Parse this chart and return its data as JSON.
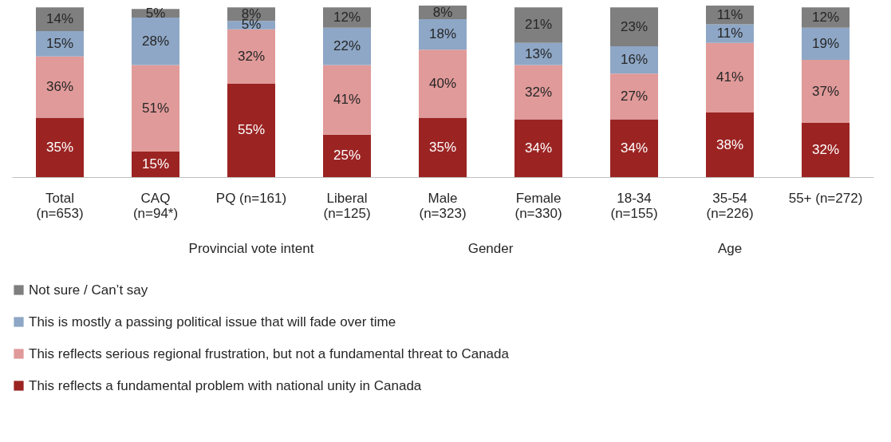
{
  "chart_data": {
    "type": "bar",
    "stacked": true,
    "data_labels": false,
    "legend": "bottom",
    "grid": false,
    "categories": [
      "Total\n(n=653)",
      "CAQ\n(n=94*)",
      "PQ (n=161)",
      "Liberal\n(n=125)",
      "Male\n(n=323)",
      "Female\n(n=330)",
      "18-34\n(n=155)",
      "35-54\n(n=226)",
      "55+ (n=272)"
    ],
    "series": [
      {
        "name": "This reflects a fundamental problem with national unity in Canada",
        "color": "#9b2423",
        "values": [
          35,
          15,
          55,
          25,
          35,
          34,
          34,
          38,
          32
        ],
        "value_labels": [
          "35%",
          "15%",
          "55%",
          "25%",
          "35%",
          "34%",
          "34%",
          "38%",
          "32%"
        ]
      },
      {
        "name": "This reflects serious regional frustration, but not a fundamental threat to Canada",
        "color": "#e09a99",
        "values": [
          36,
          51,
          32,
          41,
          40,
          32,
          27,
          41,
          37
        ],
        "value_labels": [
          "36%",
          "51%",
          "32%",
          "41%",
          "40%",
          "32%",
          "27%",
          "41%",
          "37%"
        ]
      },
      {
        "name": "This is mostly a passing political issue that will fade over time",
        "color": "#8ea7c6",
        "values": [
          15,
          28,
          5,
          22,
          18,
          13,
          16,
          11,
          19
        ],
        "value_labels": [
          "15%",
          "28%",
          "5%",
          "22%",
          "18%",
          "13%",
          "16%",
          "11%",
          "19%"
        ]
      },
      {
        "name": "Not sure / Can’t say",
        "color": "#7f7f7f",
        "values": [
          14,
          5,
          8,
          12,
          8,
          21,
          23,
          11,
          12
        ],
        "value_labels": [
          "14%",
          "5%",
          "8%",
          "12%",
          "8%",
          "21%",
          "23%",
          "11%",
          "12%"
        ]
      }
    ],
    "annotations": [
      "Provincial vote intent",
      "Gender",
      "Age"
    ]
  }
}
